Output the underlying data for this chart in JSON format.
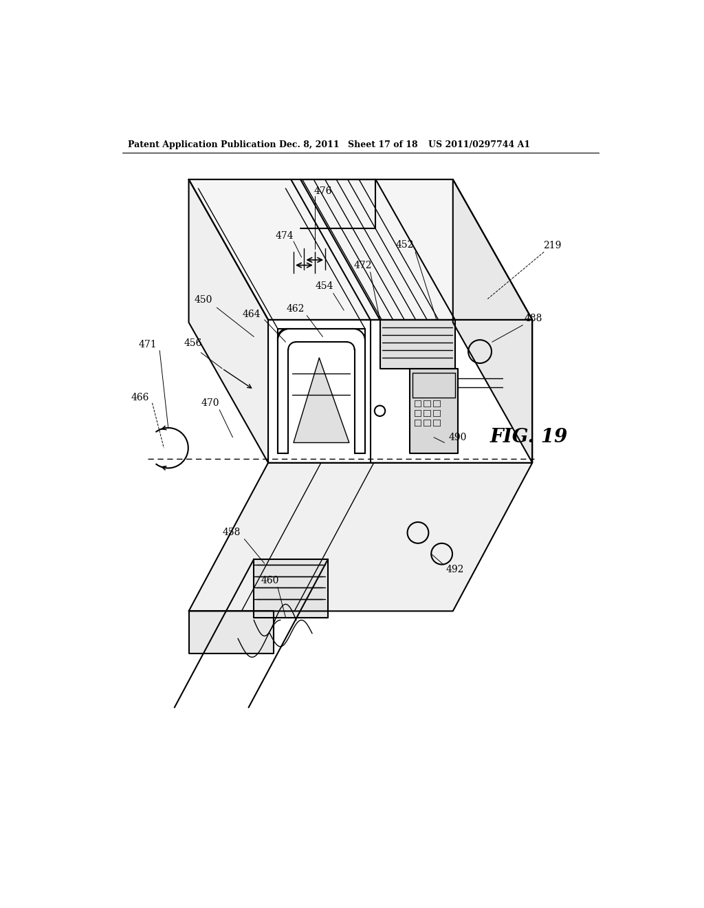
{
  "title": "Patent Application Publication",
  "date": "Dec. 8, 2011",
  "sheet": "Sheet 17 of 18",
  "patent_num": "US 2011/0297744 A1",
  "fig_label": "FIG. 19",
  "bg_color": "#ffffff",
  "line_color": "#000000"
}
